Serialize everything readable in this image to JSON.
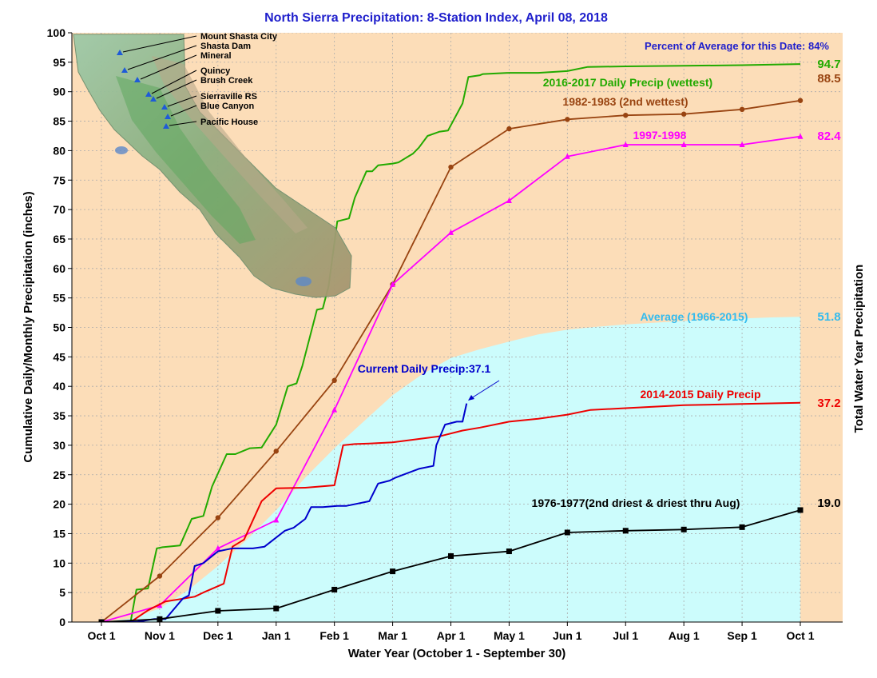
{
  "chart_data": {
    "type": "line",
    "title": "North Sierra Precipitation: 8-Station Index, April 08, 2018",
    "subtitle": "Percent of Average for this Date: 84%",
    "xlabel": "Water Year (October 1 - September 30)",
    "ylabel": "Cumulative Daily/Monthly Precipitation (inches)",
    "ylabel_right": "Total Water Year Precipitation",
    "xlim": [
      0,
      12
    ],
    "ylim": [
      0,
      100
    ],
    "x_ticks": [
      {
        "x": 0,
        "label": "Oct 1"
      },
      {
        "x": 1,
        "label": "Nov 1"
      },
      {
        "x": 2,
        "label": "Dec 1"
      },
      {
        "x": 3,
        "label": "Jan 1"
      },
      {
        "x": 4,
        "label": "Feb 1"
      },
      {
        "x": 5,
        "label": "Mar 1"
      },
      {
        "x": 6,
        "label": "Apr 1"
      },
      {
        "x": 7,
        "label": "May 1"
      },
      {
        "x": 8,
        "label": "Jun 1"
      },
      {
        "x": 9,
        "label": "Jul 1"
      },
      {
        "x": 10,
        "label": "Aug 1"
      },
      {
        "x": 11,
        "label": "Sep 1"
      },
      {
        "x": 12,
        "label": "Oct 1"
      }
    ],
    "y_ticks": [
      0,
      5,
      10,
      15,
      20,
      25,
      30,
      35,
      40,
      45,
      50,
      55,
      60,
      65,
      70,
      75,
      80,
      85,
      90,
      95,
      100
    ],
    "grid": true,
    "background_color": "#FCDDB8",
    "series": [
      {
        "name": "Average (1966-2015)",
        "kind": "area",
        "color": "#CCFCFC",
        "label_color": "#33BBEE",
        "end_value": "51.8",
        "x": [
          0,
          0.5,
          1,
          1.5,
          2,
          2.5,
          3,
          3.5,
          4,
          4.5,
          5,
          5.5,
          6,
          6.5,
          7,
          7.5,
          8,
          8.5,
          9,
          9.5,
          10,
          10.5,
          11,
          11.5,
          12
        ],
        "values": [
          0,
          0.6,
          2.3,
          5.5,
          9.5,
          14,
          19,
          24.5,
          29.5,
          34,
          38.5,
          42,
          44.8,
          46.3,
          47.6,
          48.8,
          49.6,
          50.1,
          50.5,
          50.8,
          51.1,
          51.3,
          51.5,
          51.7,
          51.8
        ]
      },
      {
        "name": "2016-2017 Daily Precip (wettest)",
        "kind": "step",
        "color": "#22AA00",
        "end_value": "94.7",
        "x": [
          0,
          0.5,
          0.6,
          0.8,
          0.95,
          1.05,
          1.35,
          1.55,
          1.75,
          1.9,
          2.15,
          2.3,
          2.55,
          2.75,
          3,
          3.2,
          3.35,
          3.45,
          3.7,
          3.8,
          3.9,
          4.05,
          4.25,
          4.35,
          4.55,
          4.65,
          4.75,
          5,
          5.1,
          5.35,
          5.45,
          5.6,
          5.8,
          5.95,
          6.2,
          6.3,
          6.5,
          6.55,
          7,
          7.5,
          8,
          8.35,
          9,
          10,
          11,
          12
        ],
        "values": [
          0,
          0,
          5.5,
          5.7,
          12.5,
          12.7,
          13,
          17.5,
          18,
          23,
          28.5,
          28.5,
          29.5,
          29.6,
          33.5,
          40,
          40.5,
          43.5,
          53,
          53.2,
          57,
          68,
          68.5,
          72,
          76.5,
          76.5,
          77.5,
          77.8,
          78,
          79.5,
          80.5,
          82.5,
          83.2,
          83.4,
          88,
          92.5,
          92.8,
          93,
          93.2,
          93.2,
          93.5,
          94.2,
          94.3,
          94.4,
          94.5,
          94.7
        ]
      },
      {
        "name": "1982-1983 (2nd wettest)",
        "kind": "line",
        "color": "#994411",
        "end_value": "88.5",
        "x": [
          0,
          1,
          2,
          3,
          4,
          5,
          6,
          7,
          8,
          9,
          10,
          11,
          12
        ],
        "values": [
          0,
          7.8,
          17.7,
          29,
          41,
          57.3,
          77.2,
          83.7,
          85.3,
          86,
          86.2,
          87,
          88.5
        ]
      },
      {
        "name": "1997-1998",
        "kind": "line",
        "color": "#FF00FF",
        "end_value": "82.4",
        "x": [
          0,
          1,
          2,
          3,
          4,
          5,
          6,
          7,
          8,
          9,
          10,
          11,
          12
        ],
        "values": [
          0,
          2.8,
          12.5,
          17.3,
          36,
          57.3,
          66.1,
          71.5,
          79,
          81,
          81,
          81,
          82.4
        ]
      },
      {
        "name": "2014-2015 Daily Precip",
        "kind": "step",
        "color": "#EE0000",
        "end_value": "37.2",
        "x": [
          0,
          0.5,
          0.8,
          1.1,
          1.3,
          1.6,
          1.75,
          2.1,
          2.25,
          2.45,
          2.75,
          3,
          3.5,
          4,
          4.15,
          4.35,
          4.6,
          5,
          5.4,
          5.8,
          6.2,
          6.5,
          7,
          7.5,
          8,
          8.4,
          9,
          10,
          11,
          12
        ],
        "values": [
          0,
          0,
          2,
          3.5,
          3.8,
          4.3,
          5,
          6.5,
          12.8,
          14,
          20.5,
          22.7,
          22.8,
          23.2,
          30,
          30.2,
          30.3,
          30.5,
          31,
          31.5,
          32.5,
          33,
          34,
          34.5,
          35.2,
          36,
          36.3,
          36.8,
          37,
          37.2
        ]
      },
      {
        "name": "Current Daily Precip:37.1",
        "kind": "step",
        "color": "#0000CC",
        "end_value": "",
        "x": [
          0,
          0.6,
          0.9,
          1.1,
          1.4,
          1.5,
          1.6,
          1.75,
          2,
          2.15,
          2.25,
          2.6,
          2.8,
          3.15,
          3.3,
          3.5,
          3.6,
          3.8,
          4.05,
          4.2,
          4.6,
          4.75,
          4.95,
          5.05,
          5.45,
          5.7,
          5.75,
          5.9,
          6.1,
          6.2,
          6.27
        ],
        "values": [
          0,
          0,
          0.5,
          0.5,
          4,
          4.5,
          9.5,
          10,
          12,
          12.3,
          12.5,
          12.5,
          12.8,
          15.5,
          16,
          17.5,
          19.5,
          19.5,
          19.7,
          19.7,
          20.5,
          23.5,
          24,
          24.5,
          26,
          26.5,
          30,
          33.5,
          34,
          34,
          37.1
        ]
      },
      {
        "name": "1976-1977(2nd driest & driest thru Aug)",
        "kind": "line",
        "color": "#000000",
        "marker": "square",
        "end_value": "19.0",
        "x": [
          0,
          1,
          2,
          3,
          4,
          5,
          6,
          7,
          8,
          9,
          10,
          11,
          12
        ],
        "values": [
          0,
          0.5,
          1.9,
          2.3,
          5.5,
          8.6,
          11.2,
          12,
          15.2,
          15.5,
          15.7,
          16.1,
          19
        ]
      }
    ],
    "map_inset": {
      "description_icon": "california-relief-map",
      "stations": [
        "Mount Shasta City",
        "Shasta Dam",
        "Mineral",
        "Quincy",
        "Brush Creek",
        "Sierraville RS",
        "Blue Canyon",
        "Pacific House"
      ]
    }
  }
}
